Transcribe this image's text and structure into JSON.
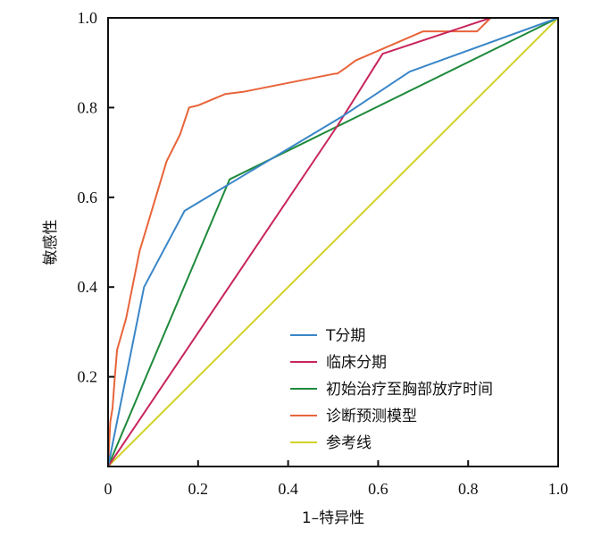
{
  "chart_data": {
    "type": "line",
    "xlabel": "1–特异性",
    "ylabel": "敏感性",
    "xlim": [
      0,
      1
    ],
    "ylim": [
      0,
      1
    ],
    "x_ticks": [
      "0",
      "0.2",
      "0.4",
      "0.6",
      "0.8",
      "1.0"
    ],
    "y_ticks": [
      "0.2",
      "0.4",
      "0.6",
      "0.8",
      "1.0"
    ],
    "grid": false,
    "legend_position": "bottom-right",
    "series": [
      {
        "name": "T分期",
        "color": "#3a86c8",
        "x": [
          0,
          0.08,
          0.17,
          0.27,
          0.52,
          0.67,
          1.0
        ],
        "y": [
          0,
          0.4,
          0.57,
          0.63,
          0.78,
          0.88,
          1.0
        ]
      },
      {
        "name": "临床分期",
        "color": "#c8255c",
        "x": [
          0,
          0.51,
          0.61,
          0.85,
          1.0
        ],
        "y": [
          0,
          0.76,
          0.92,
          1.0,
          1.0
        ]
      },
      {
        "name": "初始治疗至胸部放疗时间",
        "color": "#1f8a3c",
        "x": [
          0,
          0.27,
          1.0
        ],
        "y": [
          0,
          0.64,
          1.0
        ]
      },
      {
        "name": "诊断预测模型",
        "color": "#e8643a",
        "x": [
          0,
          0.005,
          0.01,
          0.015,
          0.02,
          0.04,
          0.07,
          0.1,
          0.13,
          0.16,
          0.18,
          0.2,
          0.26,
          0.3,
          0.5,
          0.51,
          0.53,
          0.55,
          0.7,
          0.75,
          0.82,
          0.84,
          0.85,
          1.0
        ],
        "y": [
          0,
          0.1,
          0.13,
          0.2,
          0.26,
          0.33,
          0.48,
          0.58,
          0.68,
          0.74,
          0.8,
          0.805,
          0.83,
          0.835,
          0.875,
          0.876,
          0.89,
          0.905,
          0.97,
          0.97,
          0.97,
          0.99,
          1.0,
          1.0
        ]
      },
      {
        "name": "参考线",
        "color": "#d2d228",
        "x": [
          0,
          1
        ],
        "y": [
          0,
          1
        ]
      }
    ]
  }
}
